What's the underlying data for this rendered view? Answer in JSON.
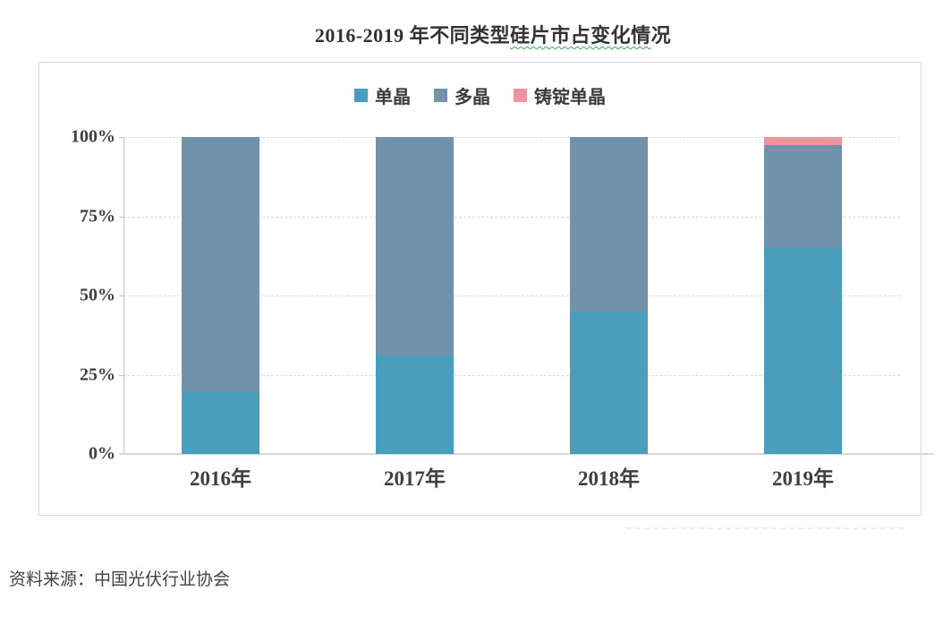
{
  "title": {
    "pre": "2016-2019 年不同类型",
    "underlined": "硅片市占变化情",
    "post": "况"
  },
  "source": "资料来源：中国光伏行业协会",
  "chart_data": {
    "type": "bar",
    "stacked": true,
    "title": "2016-2019 年不同类型硅片市占变化情况",
    "categories": [
      "2016年",
      "2017年",
      "2018年",
      "2019年"
    ],
    "series": [
      {
        "name": "单晶",
        "color": "#4a9ebc",
        "values": [
          19.5,
          31,
          45,
          65
        ]
      },
      {
        "name": "多晶",
        "color": "#7092aa",
        "values": [
          80.5,
          69,
          55,
          32.5
        ]
      },
      {
        "name": "铸锭单晶",
        "color": "#ee949e",
        "values": [
          0,
          0,
          0,
          2.5
        ]
      }
    ],
    "yticks": [
      "100%",
      "75%",
      "50%",
      "25%",
      "0%"
    ],
    "ylim": [
      0,
      100
    ],
    "unit": "%",
    "legend_position": "top-center",
    "grid": "horizontal-dashed",
    "xlabel": "",
    "ylabel": ""
  },
  "colors": {
    "accent_teal": "#4a9ebc",
    "accent_slate": "#7092aa",
    "accent_pink": "#ee949e",
    "title_underline": "#3faf46",
    "axis": "#c4c4c4",
    "grid": "#dcdcdc",
    "panel_border": "#d9d9d9",
    "label_text": "#3f3f3f"
  }
}
